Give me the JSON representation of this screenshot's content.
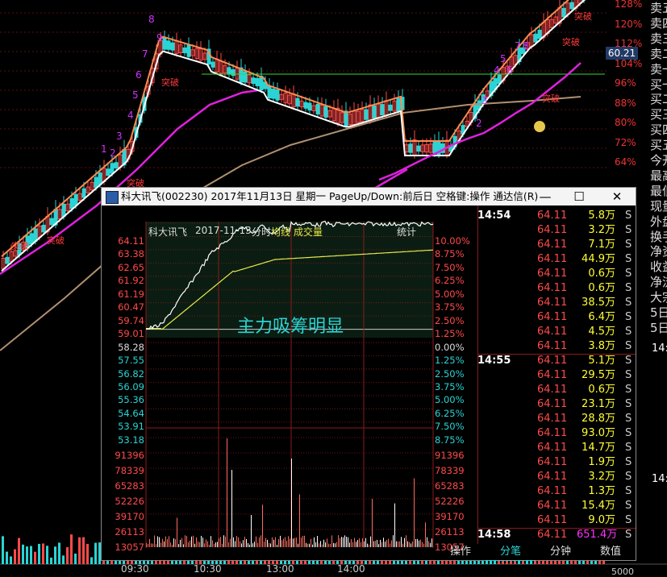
{
  "background_chart": {
    "pct_ticks": [
      "128%",
      "120%",
      "112%",
      "104%",
      "96%",
      "88%",
      "80%",
      "72%",
      "64%"
    ],
    "current_price": "60.21",
    "breakout_label": "突破",
    "wave_labels": [
      "1",
      "2",
      "3",
      "4",
      "5",
      "6",
      "7",
      "8",
      "9"
    ],
    "right_panel_labels": [
      "卖五",
      "卖四",
      "卖三",
      "卖二",
      "卖一",
      "买一",
      "买二",
      "买三",
      "买四",
      "买五",
      "今开",
      "最高",
      "最低",
      "现量",
      "外盘",
      "换手",
      "净资",
      "收益",
      "净流",
      "大宗",
      "5日",
      "5日"
    ],
    "bottom_axis_value": "5000",
    "right_time_a": "14:",
    "right_time_b": "14:"
  },
  "dialog": {
    "title": "科大讯飞(002230) 2017年11月13日 星期一 PageUp/Down:前后日 空格键:操作 通达信(R)",
    "window_buttons": {
      "minimize": "—",
      "maximize": "☐",
      "close": "✕"
    },
    "chart_header": {
      "name": "科大讯飞",
      "date": "2017-11-13",
      "type": "分时",
      "avg_line": "均线",
      "volume": "成交量",
      "stats_button": "统计"
    },
    "price_ticks": [
      "64.11",
      "63.38",
      "62.65",
      "61.92",
      "61.19",
      "60.47",
      "59.74",
      "59.01",
      "58.28",
      "57.55",
      "56.82",
      "56.09",
      "55.36",
      "54.64",
      "53.91",
      "53.18"
    ],
    "pct_ticks_up": [
      "10.00%",
      "8.75%",
      "7.50%",
      "6.25%",
      "5.00%",
      "3.75%",
      "2.50%",
      "1.25%",
      "0.00%"
    ],
    "pct_ticks_down": [
      "1.25%",
      "2.50%",
      "3.75%",
      "5.00%",
      "6.25%",
      "7.50%",
      "8.75%"
    ],
    "volume_ticks": [
      "91396",
      "78339",
      "65283",
      "52226",
      "39170",
      "26113",
      "13057"
    ],
    "time_ticks": [
      "09:30",
      "10:30",
      "13:00",
      "14:00"
    ],
    "annotation": "主力吸筹明显",
    "ticks": [
      {
        "time": "14:54",
        "price": "64.11",
        "vol": "5.8万",
        "side": "S"
      },
      {
        "time": "",
        "price": "64.11",
        "vol": "3.2万",
        "side": "S"
      },
      {
        "time": "",
        "price": "64.11",
        "vol": "7.1万",
        "side": "S"
      },
      {
        "time": "",
        "price": "64.11",
        "vol": "44.9万",
        "side": "S"
      },
      {
        "time": "",
        "price": "64.11",
        "vol": "0.6万",
        "side": "S"
      },
      {
        "time": "",
        "price": "64.11",
        "vol": "0.6万",
        "side": "S"
      },
      {
        "time": "",
        "price": "64.11",
        "vol": "38.5万",
        "side": "S"
      },
      {
        "time": "",
        "price": "64.11",
        "vol": "6.4万",
        "side": "S"
      },
      {
        "time": "",
        "price": "64.11",
        "vol": "4.5万",
        "side": "S"
      },
      {
        "time": "",
        "price": "64.11",
        "vol": "3.8万",
        "side": "S"
      },
      {
        "time": "14:55",
        "price": "64.11",
        "vol": "5.1万",
        "side": "S"
      },
      {
        "time": "",
        "price": "64.11",
        "vol": "29.5万",
        "side": "S"
      },
      {
        "time": "",
        "price": "64.11",
        "vol": "0.6万",
        "side": "S"
      },
      {
        "time": "",
        "price": "64.11",
        "vol": "23.1万",
        "side": "S"
      },
      {
        "time": "",
        "price": "64.11",
        "vol": "28.8万",
        "side": "S"
      },
      {
        "time": "",
        "price": "64.11",
        "vol": "93.0万",
        "side": "S"
      },
      {
        "time": "",
        "price": "64.11",
        "vol": "14.7万",
        "side": "S"
      },
      {
        "time": "",
        "price": "64.11",
        "vol": "1.9万",
        "side": "S"
      },
      {
        "time": "",
        "price": "64.11",
        "vol": "3.2万",
        "side": "S"
      },
      {
        "time": "",
        "price": "64.11",
        "vol": "1.3万",
        "side": "S"
      },
      {
        "time": "",
        "price": "64.11",
        "vol": "15.4万",
        "side": "S"
      },
      {
        "time": "",
        "price": "64.11",
        "vol": "9.0万",
        "side": "S"
      },
      {
        "time": "14:58",
        "price": "64.11",
        "vol": "651.4万",
        "side": "S"
      }
    ],
    "tabs": [
      "操作",
      "分笔",
      "分钟",
      "数值"
    ],
    "colors": {
      "up": "#ff4a4a",
      "down": "#2ad4d4",
      "avg": "#e8e84a",
      "price_line": "#ffffff",
      "grid": "#8b1a1a",
      "ma_purple": "#dd22dd",
      "ma_orange": "#ff8c50"
    }
  }
}
